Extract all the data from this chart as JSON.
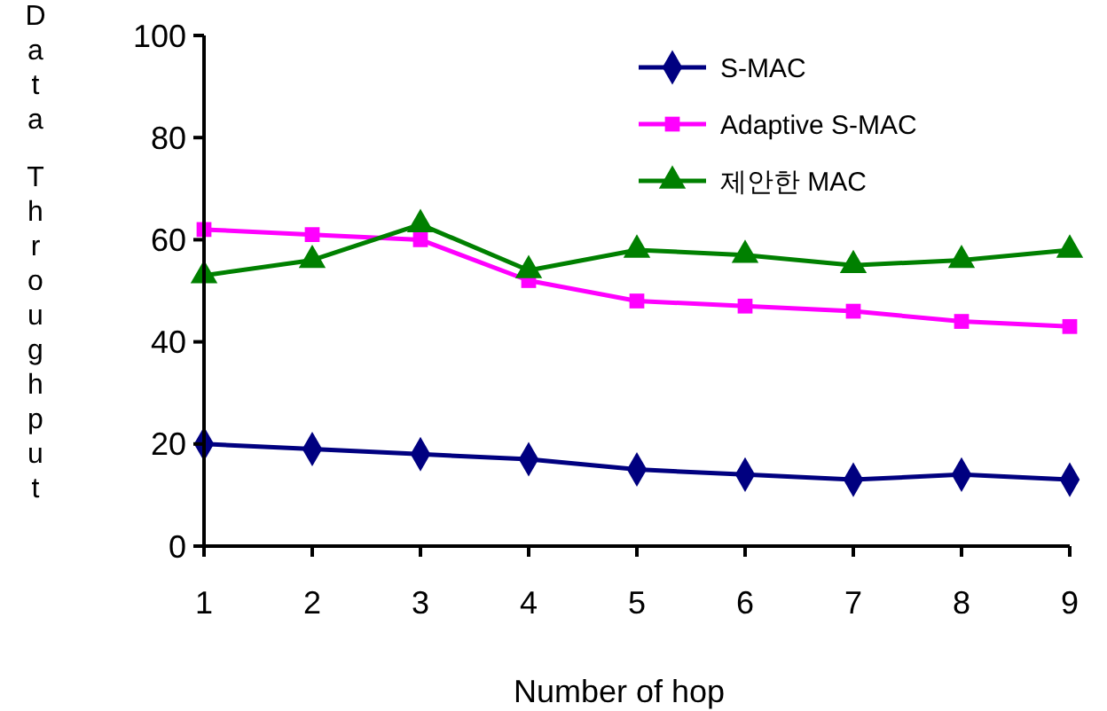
{
  "chart_data": {
    "type": "line",
    "xlabel": "Number of hop",
    "ylabel": "Data Throughput",
    "x": [
      1,
      2,
      3,
      4,
      5,
      6,
      7,
      8,
      9
    ],
    "xlim": [
      1,
      9
    ],
    "xticks": [
      1,
      2,
      3,
      4,
      5,
      6,
      7,
      8,
      9
    ],
    "ylim": [
      0,
      100
    ],
    "yticks": [
      0,
      20,
      40,
      60,
      80,
      100
    ],
    "grid": false,
    "legend": "top right",
    "series": [
      {
        "name": "S-MAC",
        "color": "#000080",
        "marker": "diamond",
        "values": [
          20,
          19,
          18,
          17,
          15,
          14,
          13,
          14,
          13
        ]
      },
      {
        "name": "Adaptive S-MAC",
        "color": "#ff00ff",
        "marker": "square",
        "values": [
          62,
          61,
          60,
          52,
          48,
          47,
          46,
          44,
          43
        ]
      },
      {
        "name": "제안한 MAC",
        "color": "#008000",
        "marker": "triangle",
        "values": [
          53,
          56,
          63,
          54,
          58,
          57,
          55,
          56,
          58
        ]
      }
    ]
  }
}
